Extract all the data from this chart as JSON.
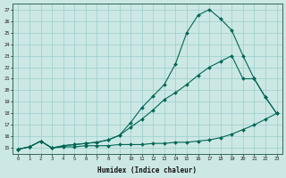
{
  "xlabel": "Humidex (Indice chaleur)",
  "background_color": "#cce8e4",
  "grid_color": "#99cccc",
  "line_color": "#006655",
  "x_values": [
    0,
    1,
    2,
    3,
    4,
    5,
    6,
    7,
    8,
    9,
    10,
    11,
    12,
    13,
    14,
    15,
    16,
    17,
    18,
    19,
    20,
    21,
    22,
    23
  ],
  "line1": [
    14.9,
    15.1,
    15.6,
    15.0,
    15.1,
    15.1,
    15.2,
    15.2,
    15.2,
    15.3,
    15.3,
    15.3,
    15.4,
    15.4,
    15.5,
    15.5,
    15.6,
    15.7,
    15.9,
    16.2,
    16.6,
    17.0,
    17.5,
    18.0
  ],
  "line2": [
    14.9,
    15.1,
    15.6,
    15.0,
    15.2,
    15.3,
    15.4,
    15.5,
    15.7,
    16.1,
    16.8,
    17.5,
    18.3,
    19.2,
    19.8,
    20.5,
    21.3,
    22.0,
    22.5,
    23.0,
    21.0,
    21.0,
    19.4,
    18.0
  ],
  "line3": [
    14.9,
    15.1,
    15.6,
    15.0,
    15.2,
    15.3,
    15.4,
    15.5,
    15.7,
    16.1,
    17.2,
    18.5,
    19.5,
    20.5,
    22.3,
    25.0,
    26.5,
    27.0,
    26.2,
    25.2,
    23.0,
    21.0,
    19.4,
    18.0
  ],
  "ylim": [
    14.5,
    27.5
  ],
  "yticks": [
    15,
    16,
    17,
    18,
    19,
    20,
    21,
    22,
    23,
    24,
    25,
    26,
    27
  ],
  "xticks": [
    0,
    1,
    2,
    3,
    4,
    5,
    6,
    7,
    8,
    9,
    10,
    11,
    12,
    13,
    14,
    15,
    16,
    17,
    18,
    19,
    20,
    21,
    22,
    23
  ],
  "xlim": [
    -0.5,
    23.5
  ]
}
